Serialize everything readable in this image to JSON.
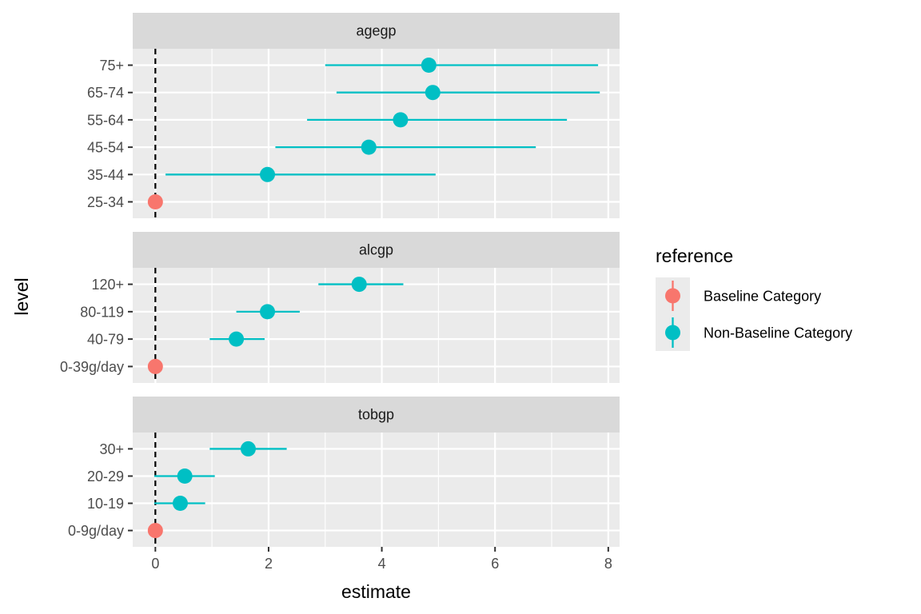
{
  "chart_data": {
    "type": "scatter",
    "subtype": "faceted forest plot (point estimate with horizontal interval)",
    "xlabel": "estimate",
    "ylabel": "level",
    "xlim": [
      -0.4,
      8.2
    ],
    "x_ticks": [
      0,
      2,
      4,
      6,
      8
    ],
    "reference_line": {
      "x": 0,
      "style": "dashed",
      "color": "#000000"
    },
    "grid": true,
    "legend": {
      "title": "reference",
      "position": "right",
      "entries": [
        {
          "label": "Baseline Category",
          "color": "#F8766D"
        },
        {
          "label": "Non-Baseline Category",
          "color": "#00BFC4"
        }
      ]
    },
    "facets": [
      {
        "title": "agegp",
        "levels": [
          {
            "level": "75+",
            "estimate": 4.83,
            "lower": 3.0,
            "upper": 7.82,
            "reference": "Non-Baseline Category"
          },
          {
            "level": "65-74",
            "estimate": 4.9,
            "lower": 3.2,
            "upper": 7.85,
            "reference": "Non-Baseline Category"
          },
          {
            "level": "55-64",
            "estimate": 4.33,
            "lower": 2.68,
            "upper": 7.27,
            "reference": "Non-Baseline Category"
          },
          {
            "level": "45-54",
            "estimate": 3.77,
            "lower": 2.12,
            "upper": 6.72,
            "reference": "Non-Baseline Category"
          },
          {
            "level": "35-44",
            "estimate": 1.98,
            "lower": 0.18,
            "upper": 4.95,
            "reference": "Non-Baseline Category"
          },
          {
            "level": "25-34",
            "estimate": 0,
            "lower": 0,
            "upper": 0,
            "reference": "Baseline Category"
          }
        ]
      },
      {
        "title": "alcgp",
        "levels": [
          {
            "level": "120+",
            "estimate": 3.6,
            "lower": 2.88,
            "upper": 4.38,
            "reference": "Non-Baseline Category"
          },
          {
            "level": "80-119",
            "estimate": 1.98,
            "lower": 1.43,
            "upper": 2.55,
            "reference": "Non-Baseline Category"
          },
          {
            "level": "40-79",
            "estimate": 1.43,
            "lower": 0.96,
            "upper": 1.93,
            "reference": "Non-Baseline Category"
          },
          {
            "level": "0-39g/day",
            "estimate": 0,
            "lower": 0,
            "upper": 0,
            "reference": "Baseline Category"
          }
        ]
      },
      {
        "title": "tobgp",
        "levels": [
          {
            "level": "30+",
            "estimate": 1.64,
            "lower": 0.96,
            "upper": 2.32,
            "reference": "Non-Baseline Category"
          },
          {
            "level": "20-29",
            "estimate": 0.52,
            "lower": -0.02,
            "upper": 1.05,
            "reference": "Non-Baseline Category"
          },
          {
            "level": "10-19",
            "estimate": 0.44,
            "lower": -0.02,
            "upper": 0.88,
            "reference": "Non-Baseline Category"
          },
          {
            "level": "0-9g/day",
            "estimate": 0,
            "lower": 0,
            "upper": 0,
            "reference": "Baseline Category"
          }
        ]
      }
    ]
  },
  "colors": {
    "panel_background": "#EBEBEB",
    "strip_background": "#D9D9D9",
    "gridline": "#FFFFFF",
    "tick_text": "#4D4D4D",
    "tick_mark": "#333333"
  }
}
